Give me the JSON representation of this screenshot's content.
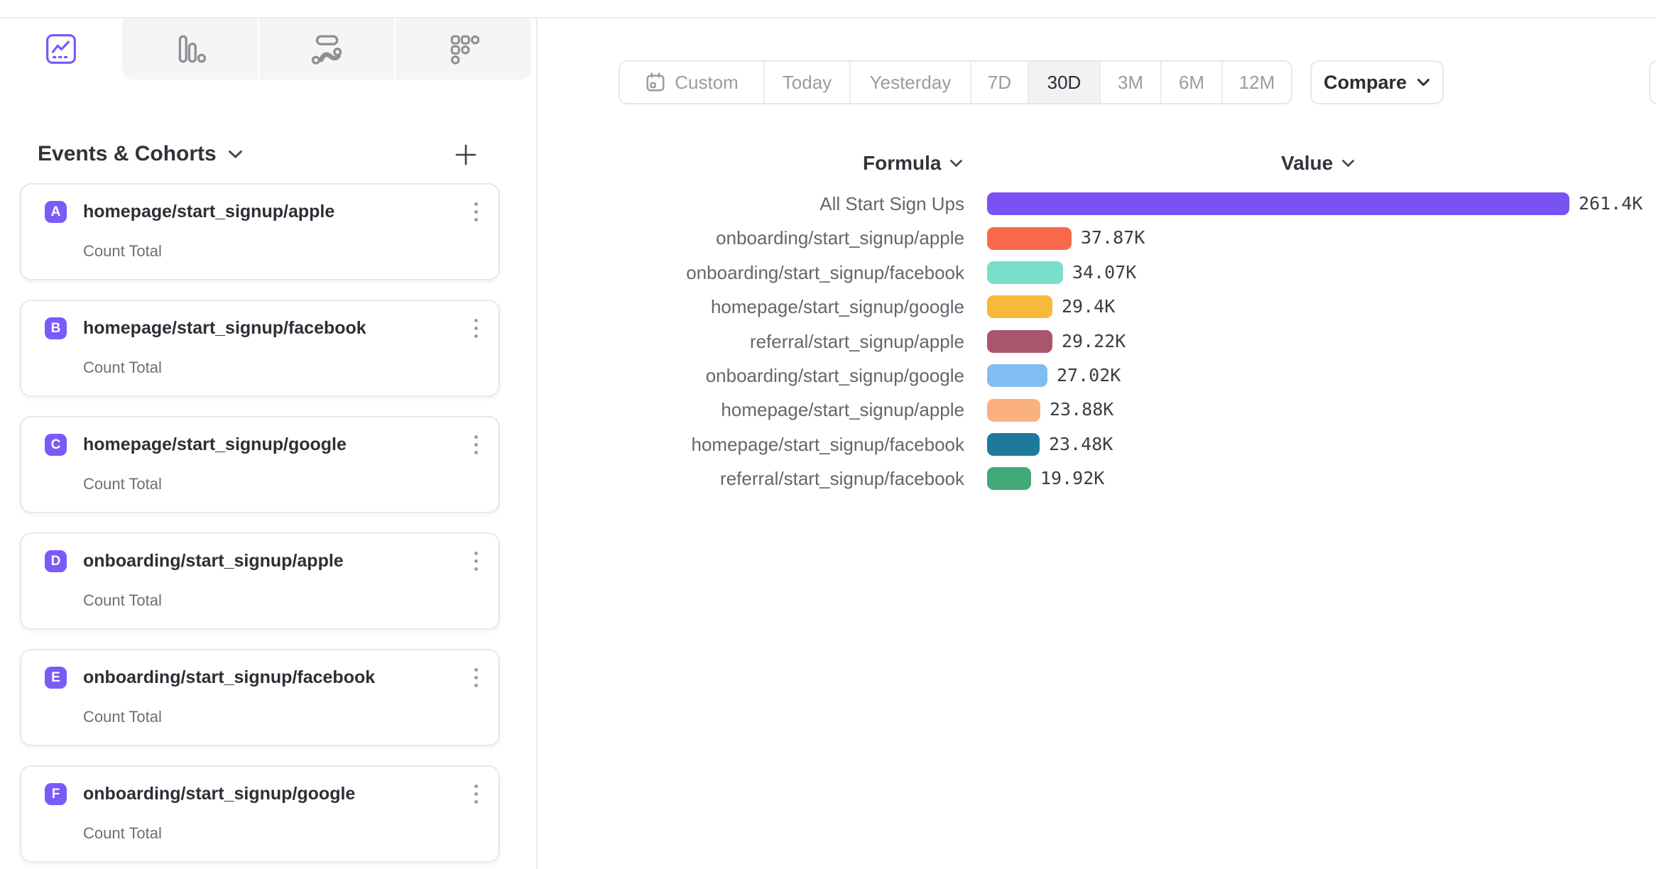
{
  "tabs": {
    "items": [
      {
        "icon": "insights-line-chart",
        "active": true
      },
      {
        "icon": "funnels-bars",
        "active": false
      },
      {
        "icon": "flows",
        "active": false
      },
      {
        "icon": "retention-dots",
        "active": false
      }
    ]
  },
  "sidebar": {
    "header": {
      "title": "Events & Cohorts"
    },
    "events": [
      {
        "letter": "A",
        "name": "homepage/start_signup/apple",
        "metric": "Count Total"
      },
      {
        "letter": "B",
        "name": "homepage/start_signup/facebook",
        "metric": "Count Total"
      },
      {
        "letter": "C",
        "name": "homepage/start_signup/google",
        "metric": "Count Total"
      },
      {
        "letter": "D",
        "name": "onboarding/start_signup/apple",
        "metric": "Count Total"
      },
      {
        "letter": "E",
        "name": "onboarding/start_signup/facebook",
        "metric": "Count Total"
      },
      {
        "letter": "F",
        "name": "onboarding/start_signup/google",
        "metric": "Count Total"
      }
    ]
  },
  "date_ranges": {
    "options": [
      "Custom",
      "Today",
      "Yesterday",
      "7D",
      "30D",
      "3M",
      "6M",
      "12M"
    ],
    "active": "30D"
  },
  "compare": {
    "label": "Compare"
  },
  "chart": {
    "formula_header": "Formula",
    "value_header": "Value"
  },
  "chart_data": {
    "type": "bar",
    "orientation": "horizontal",
    "title": "",
    "categories": [
      "All Start Sign Ups",
      "onboarding/start_signup/apple",
      "onboarding/start_signup/facebook",
      "homepage/start_signup/google",
      "referral/start_signup/apple",
      "onboarding/start_signup/google",
      "homepage/start_signup/apple",
      "homepage/start_signup/facebook",
      "referral/start_signup/facebook"
    ],
    "values": [
      261400,
      37870,
      34070,
      29400,
      29220,
      27020,
      23880,
      23480,
      19920
    ],
    "value_labels": [
      "261.4K",
      "37.87K",
      "34.07K",
      "29.4K",
      "29.22K",
      "27.02K",
      "23.88K",
      "23.48K",
      "19.92K"
    ],
    "colors": [
      "#7a52f4",
      "#f8694b",
      "#79dfca",
      "#f6b93a",
      "#a9556d",
      "#80bdf2",
      "#fbb17e",
      "#1d7a9c",
      "#40a977"
    ],
    "xlim": [
      0,
      261400
    ],
    "legend": "none",
    "grid": false
  },
  "theme": {
    "accent_purple": "#7856ff",
    "badge_purple": "#7b5bf7",
    "label_gray": "#65656e",
    "value_dark": "#3d3d45",
    "inactive_icon_gray": "#8f8f96"
  }
}
